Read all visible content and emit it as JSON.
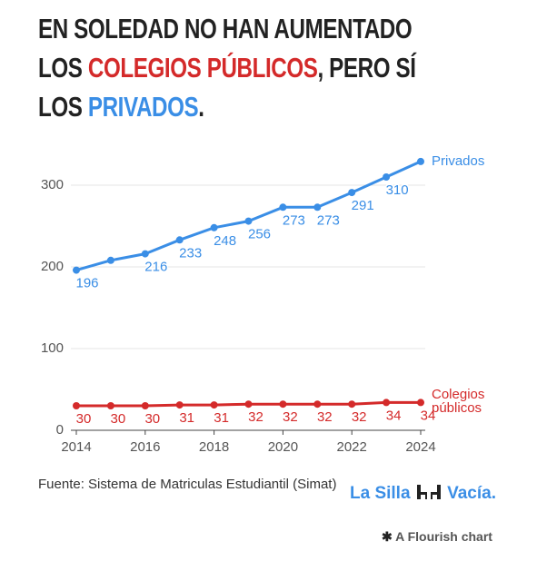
{
  "chart_data": {
    "type": "line",
    "title_parts": [
      {
        "text": "EN SOLEDAD NO HAN AUMENTADO LOS ",
        "color": "#222222"
      },
      {
        "text": "COLEGIOS PÚBLICOS",
        "color": "#d42a2a"
      },
      {
        "text": ", PERO SÍ LOS ",
        "color": "#222222"
      },
      {
        "text": "PRIVADOS",
        "color": "#3a8ee6"
      },
      {
        "text": ".",
        "color": "#222222"
      }
    ],
    "x": [
      2014,
      2015,
      2016,
      2017,
      2018,
      2019,
      2020,
      2021,
      2022,
      2023,
      2024
    ],
    "series": [
      {
        "name": "Privados",
        "color": "#3a8ee6",
        "values": [
          196,
          208,
          216,
          233,
          248,
          256,
          273,
          273,
          291,
          310,
          329
        ],
        "value_labels": [
          "196",
          null,
          "216",
          "233",
          "248",
          "256",
          "273",
          "273",
          "291",
          "310",
          null
        ]
      },
      {
        "name": "Colegios públicos",
        "color": "#d42a2a",
        "values": [
          30,
          30,
          30,
          31,
          31,
          32,
          32,
          32,
          32,
          34,
          34
        ],
        "value_labels": [
          "30",
          "30",
          "30",
          "31",
          "31",
          "32",
          "32",
          "32",
          "32",
          "34",
          "34"
        ]
      }
    ],
    "xlim": [
      2014,
      2024
    ],
    "xticks": [
      2014,
      2016,
      2018,
      2020,
      2022,
      2024
    ],
    "ylim": [
      0,
      330
    ],
    "yticks": [
      0,
      100,
      200,
      300
    ],
    "grid": true,
    "source": "Fuente: Sistema de Matriculas Estudiantil (Simat)",
    "logo": {
      "left": "La Silla",
      "right": "Vacía."
    },
    "credit": "A Flourish chart"
  }
}
